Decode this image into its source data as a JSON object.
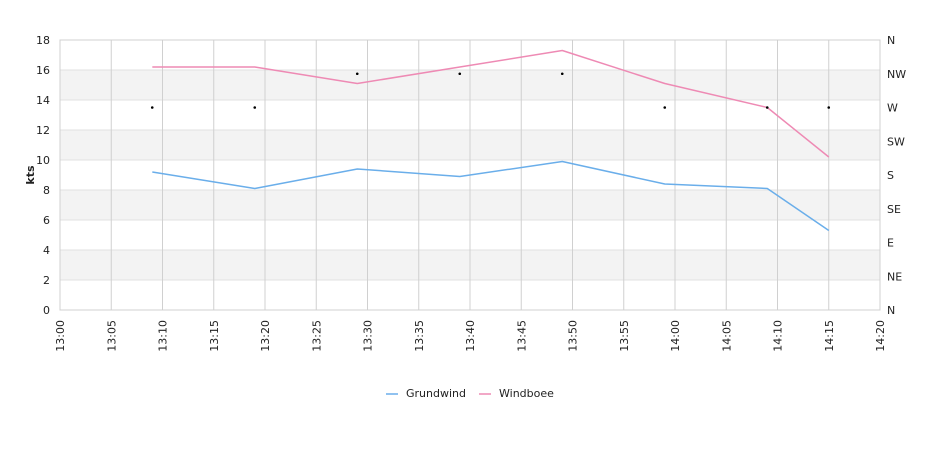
{
  "chart_data": {
    "type": "line",
    "ylabel": "kts",
    "ylim": [
      0,
      18
    ],
    "yticks": [
      "0",
      "2",
      "4",
      "6",
      "8",
      "10",
      "12",
      "14",
      "16",
      "18"
    ],
    "xlim": [
      "13:00",
      "14:20"
    ],
    "xticks": [
      "13:00",
      "13:05",
      "13:10",
      "13:15",
      "13:20",
      "13:25",
      "13:30",
      "13:35",
      "13:40",
      "13:45",
      "13:50",
      "13:55",
      "14:00",
      "14:05",
      "14:10",
      "14:15",
      "14:20"
    ],
    "y2ticks": [
      "N",
      "NE",
      "E",
      "SE",
      "S",
      "SW",
      "W",
      "NW",
      "N"
    ],
    "grid": true,
    "legend": "bottom-center",
    "series": [
      {
        "name": "Grundwind",
        "color": "#6aaeea",
        "x": [
          "13:09",
          "13:19",
          "13:29",
          "13:39",
          "13:49",
          "13:59",
          "14:09",
          "14:15"
        ],
        "values": [
          9.2,
          8.1,
          9.4,
          8.9,
          9.9,
          8.4,
          8.1,
          5.3
        ]
      },
      {
        "name": "Windboee",
        "color": "#ee8ab4",
        "x": [
          "13:09",
          "13:19",
          "13:29",
          "13:39",
          "13:49",
          "13:59",
          "14:09",
          "14:15"
        ],
        "values": [
          16.2,
          16.2,
          15.1,
          16.2,
          17.3,
          15.1,
          13.5,
          10.2
        ]
      }
    ],
    "direction_points": {
      "x": [
        "13:09",
        "13:19",
        "13:29",
        "13:39",
        "13:49",
        "13:59",
        "14:09",
        "14:15"
      ],
      "values": [
        "W",
        "W",
        "NW",
        "NW",
        "NW",
        "W",
        "W",
        "W"
      ]
    }
  }
}
